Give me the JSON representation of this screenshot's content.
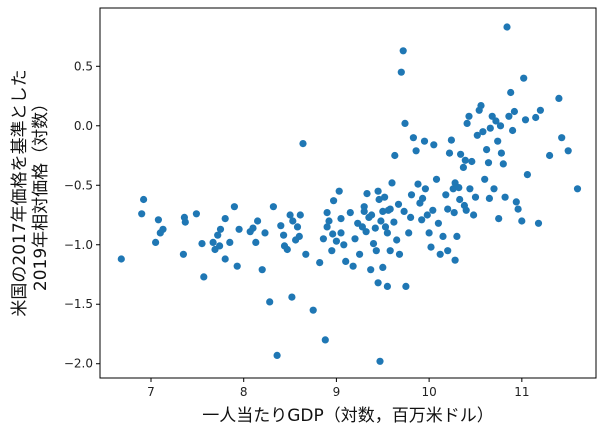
{
  "chart_data": {
    "type": "scatter",
    "title": "",
    "xlabel": "一人当たりGDP（対数，百万米ドル）",
    "ylabel_lines": [
      "米国の2017年価格を基準とした",
      "2019年相対価格（対数）"
    ],
    "xlim": [
      6.45,
      11.8
    ],
    "ylim": [
      -2.12,
      0.99
    ],
    "x_ticks": [
      7,
      8,
      9,
      10,
      11
    ],
    "x_tick_labels": [
      "7",
      "8",
      "9",
      "10",
      "11"
    ],
    "y_ticks": [
      -2.0,
      -1.5,
      -1.0,
      -0.5,
      0.0,
      0.5
    ],
    "y_tick_labels": [
      "−2.0",
      "−1.5",
      "−1.0",
      "−0.5",
      "0.0",
      "0.5"
    ],
    "grid": false,
    "color": "#1f77b4",
    "points": [
      [
        6.68,
        -1.12
      ],
      [
        6.9,
        -0.74
      ],
      [
        6.92,
        -0.62
      ],
      [
        7.05,
        -0.98
      ],
      [
        7.08,
        -0.79
      ],
      [
        7.1,
        -0.9
      ],
      [
        7.13,
        -0.87
      ],
      [
        7.35,
        -1.08
      ],
      [
        7.36,
        -0.77
      ],
      [
        7.37,
        -0.81
      ],
      [
        7.49,
        -0.74
      ],
      [
        7.55,
        -0.99
      ],
      [
        7.57,
        -1.27
      ],
      [
        7.67,
        -0.98
      ],
      [
        7.69,
        -1.04
      ],
      [
        7.72,
        -0.92
      ],
      [
        7.74,
        -1.01
      ],
      [
        7.75,
        -0.87
      ],
      [
        7.8,
        -0.78
      ],
      [
        7.8,
        -1.12
      ],
      [
        7.85,
        -0.98
      ],
      [
        7.9,
        -0.68
      ],
      [
        7.93,
        -1.18
      ],
      [
        7.95,
        -0.87
      ],
      [
        8.07,
        -0.89
      ],
      [
        8.1,
        -0.86
      ],
      [
        8.13,
        -0.98
      ],
      [
        8.15,
        -0.8
      ],
      [
        8.2,
        -1.21
      ],
      [
        8.23,
        -0.9
      ],
      [
        8.28,
        -1.48
      ],
      [
        8.32,
        -0.68
      ],
      [
        8.36,
        -1.93
      ],
      [
        8.4,
        -0.84
      ],
      [
        8.43,
        -0.92
      ],
      [
        8.44,
        -1.01
      ],
      [
        8.47,
        -1.04
      ],
      [
        8.5,
        -0.75
      ],
      [
        8.52,
        -1.44
      ],
      [
        8.53,
        -0.8
      ],
      [
        8.56,
        -0.96
      ],
      [
        8.58,
        -0.85
      ],
      [
        8.6,
        -0.93
      ],
      [
        8.61,
        -0.75
      ],
      [
        8.64,
        -0.15
      ],
      [
        8.67,
        -1.08
      ],
      [
        8.75,
        -1.55
      ],
      [
        8.82,
        -1.15
      ],
      [
        8.86,
        -0.95
      ],
      [
        8.88,
        -1.8
      ],
      [
        8.9,
        -0.85
      ],
      [
        8.9,
        -0.73
      ],
      [
        8.92,
        -0.8
      ],
      [
        8.95,
        -1.05
      ],
      [
        8.96,
        -0.91
      ],
      [
        8.97,
        -0.63
      ],
      [
        9.0,
        -0.97
      ],
      [
        9.03,
        -0.55
      ],
      [
        9.05,
        -0.78
      ],
      [
        9.05,
        -0.9
      ],
      [
        9.08,
        -1.0
      ],
      [
        9.1,
        -1.14
      ],
      [
        9.15,
        -0.73
      ],
      [
        9.18,
        -1.18
      ],
      [
        9.2,
        -0.95
      ],
      [
        9.23,
        -0.82
      ],
      [
        9.25,
        -1.08
      ],
      [
        9.28,
        -0.85
      ],
      [
        9.3,
        -0.68
      ],
      [
        9.3,
        -0.72
      ],
      [
        9.32,
        -0.89
      ],
      [
        9.33,
        -0.57
      ],
      [
        9.35,
        -0.77
      ],
      [
        9.37,
        -1.21
      ],
      [
        9.38,
        -0.75
      ],
      [
        9.4,
        -0.99
      ],
      [
        9.42,
        -0.86
      ],
      [
        9.43,
        -1.05
      ],
      [
        9.45,
        -0.55
      ],
      [
        9.45,
        -1.32
      ],
      [
        9.46,
        -0.62
      ],
      [
        9.47,
        -1.98
      ],
      [
        9.48,
        -0.8
      ],
      [
        9.5,
        -0.72
      ],
      [
        9.5,
        -1.19
      ],
      [
        9.52,
        -0.6
      ],
      [
        9.53,
        -0.85
      ],
      [
        9.55,
        -0.9
      ],
      [
        9.55,
        -1.35
      ],
      [
        9.56,
        -0.71
      ],
      [
        9.58,
        -0.7
      ],
      [
        9.58,
        -1.05
      ],
      [
        9.6,
        -0.48
      ],
      [
        9.62,
        -0.81
      ],
      [
        9.63,
        -0.25
      ],
      [
        9.65,
        -0.96
      ],
      [
        9.67,
        -0.66
      ],
      [
        9.68,
        -1.08
      ],
      [
        9.7,
        0.45
      ],
      [
        9.72,
        0.63
      ],
      [
        9.74,
        0.02
      ],
      [
        9.73,
        -0.72
      ],
      [
        9.75,
        -1.35
      ],
      [
        9.78,
        -0.9
      ],
      [
        9.8,
        -0.77
      ],
      [
        9.81,
        -0.58
      ],
      [
        9.83,
        -0.1
      ],
      [
        9.86,
        -0.21
      ],
      [
        9.88,
        -0.49
      ],
      [
        9.9,
        -0.65
      ],
      [
        9.92,
        -0.79
      ],
      [
        9.93,
        -0.61
      ],
      [
        9.95,
        -0.13
      ],
      [
        9.96,
        -0.53
      ],
      [
        9.98,
        -0.75
      ],
      [
        10.0,
        -0.9
      ],
      [
        10.02,
        -1.02
      ],
      [
        10.04,
        -0.71
      ],
      [
        10.05,
        -0.16
      ],
      [
        10.08,
        -0.45
      ],
      [
        10.1,
        -0.82
      ],
      [
        10.12,
        -1.08
      ],
      [
        10.15,
        -0.93
      ],
      [
        10.18,
        -0.58
      ],
      [
        10.2,
        -0.7
      ],
      [
        10.2,
        -1.05
      ],
      [
        10.22,
        -0.23
      ],
      [
        10.24,
        -0.12
      ],
      [
        10.26,
        -0.53
      ],
      [
        10.27,
        -0.73
      ],
      [
        10.28,
        -0.48
      ],
      [
        10.28,
        -1.13
      ],
      [
        10.3,
        -0.93
      ],
      [
        10.32,
        -0.52
      ],
      [
        10.33,
        -0.62
      ],
      [
        10.34,
        -0.24
      ],
      [
        10.37,
        -0.35
      ],
      [
        10.38,
        -0.67
      ],
      [
        10.39,
        -0.29
      ],
      [
        10.4,
        -0.71
      ],
      [
        10.41,
        0.02
      ],
      [
        10.43,
        0.08
      ],
      [
        10.44,
        -0.53
      ],
      [
        10.46,
        -0.3
      ],
      [
        10.48,
        -0.75
      ],
      [
        10.5,
        -0.6
      ],
      [
        10.52,
        -0.08
      ],
      [
        10.54,
        0.13
      ],
      [
        10.56,
        0.17
      ],
      [
        10.58,
        -0.05
      ],
      [
        10.6,
        -0.45
      ],
      [
        10.62,
        -0.2
      ],
      [
        10.64,
        -0.31
      ],
      [
        10.65,
        -0.61
      ],
      [
        10.66,
        -0.02
      ],
      [
        10.68,
        0.08
      ],
      [
        10.7,
        -0.53
      ],
      [
        10.72,
        0.04
      ],
      [
        10.74,
        -0.13
      ],
      [
        10.75,
        -0.78
      ],
      [
        10.77,
        0.0
      ],
      [
        10.78,
        -0.23
      ],
      [
        10.8,
        -0.32
      ],
      [
        10.82,
        -0.6
      ],
      [
        10.84,
        0.83
      ],
      [
        10.86,
        0.08
      ],
      [
        10.88,
        0.28
      ],
      [
        10.9,
        -0.04
      ],
      [
        10.92,
        0.12
      ],
      [
        10.94,
        -0.64
      ],
      [
        10.96,
        -0.7
      ],
      [
        11.0,
        -0.8
      ],
      [
        11.02,
        0.4
      ],
      [
        11.04,
        0.05
      ],
      [
        11.06,
        -0.41
      ],
      [
        11.15,
        0.07
      ],
      [
        11.18,
        -0.82
      ],
      [
        11.2,
        0.13
      ],
      [
        11.3,
        -0.25
      ],
      [
        11.4,
        0.23
      ],
      [
        11.43,
        -0.1
      ],
      [
        11.5,
        -0.21
      ],
      [
        11.6,
        -0.53
      ]
    ]
  }
}
